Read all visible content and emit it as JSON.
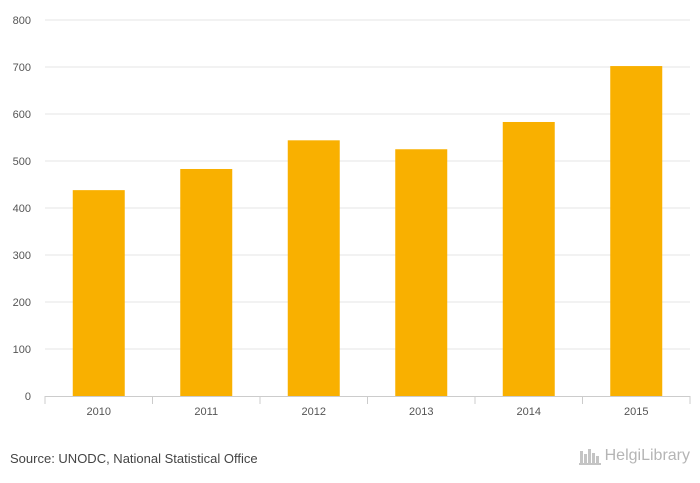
{
  "chart_data": {
    "type": "bar",
    "categories": [
      "2010",
      "2011",
      "2012",
      "2013",
      "2014",
      "2015"
    ],
    "values": [
      438,
      483,
      544,
      525,
      583,
      702
    ],
    "ylim": [
      0,
      800
    ],
    "yticks": [
      "0",
      "100",
      "200",
      "300",
      "400",
      "500",
      "600",
      "700",
      "800"
    ],
    "title": "",
    "xlabel": "",
    "ylabel": "",
    "grid": true,
    "legend": "none",
    "bar_color": "#f9b000",
    "grid_color": "#e6e6e6"
  },
  "footer": {
    "source": "Source: UNODC, National Statistical Office",
    "logo_text": "HelgiLibrary",
    "logo_icon": "helgi-library-icon"
  }
}
